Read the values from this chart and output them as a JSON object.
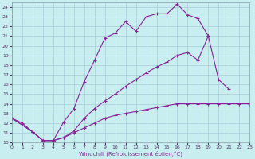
{
  "xlabel": "Windchill (Refroidissement éolien,°C)",
  "background_color": "#c8eef0",
  "grid_color": "#a8ccd8",
  "line_color": "#882299",
  "tick_color": "#553366",
  "xlim": [
    0,
    23
  ],
  "ylim": [
    10,
    24.5
  ],
  "xticks": [
    0,
    1,
    2,
    3,
    4,
    5,
    6,
    7,
    8,
    9,
    10,
    11,
    12,
    13,
    14,
    15,
    16,
    17,
    18,
    19,
    20,
    21,
    22,
    23
  ],
  "yticks": [
    10,
    11,
    12,
    13,
    14,
    15,
    16,
    17,
    18,
    19,
    20,
    21,
    22,
    23,
    24
  ],
  "curve1_x": [
    0,
    1,
    2,
    3,
    4,
    5,
    6,
    7,
    8,
    9,
    10,
    11,
    12,
    13,
    14,
    15,
    16,
    17,
    18,
    19
  ],
  "curve1_y": [
    12.5,
    12.0,
    11.1,
    10.2,
    10.2,
    12.1,
    13.5,
    16.3,
    18.5,
    20.8,
    21.3,
    22.5,
    21.5,
    23.0,
    23.3,
    23.3,
    24.3,
    23.2,
    22.8,
    21.0
  ],
  "curve2_x": [
    0,
    2,
    3,
    4,
    5,
    6,
    7,
    8,
    9,
    10,
    11,
    12,
    13,
    14,
    15,
    16,
    17,
    18,
    19,
    20,
    21
  ],
  "curve2_y": [
    12.5,
    11.1,
    10.2,
    10.2,
    10.5,
    11.2,
    12.5,
    13.5,
    14.3,
    15.0,
    15.8,
    16.5,
    17.2,
    17.8,
    18.3,
    19.0,
    19.3,
    18.5,
    21.0,
    16.5,
    15.5
  ],
  "curve3_x": [
    0,
    2,
    3,
    4,
    5,
    6,
    7,
    8,
    9,
    10,
    11,
    12,
    13,
    14,
    15,
    16,
    17,
    18,
    19,
    20,
    21,
    22,
    23
  ],
  "curve3_y": [
    12.5,
    11.1,
    10.2,
    10.2,
    10.5,
    11.0,
    11.5,
    12.0,
    12.5,
    12.8,
    13.0,
    13.2,
    13.4,
    13.6,
    13.8,
    14.0,
    14.0,
    14.0,
    14.0,
    14.0,
    14.0,
    14.0,
    14.0
  ]
}
